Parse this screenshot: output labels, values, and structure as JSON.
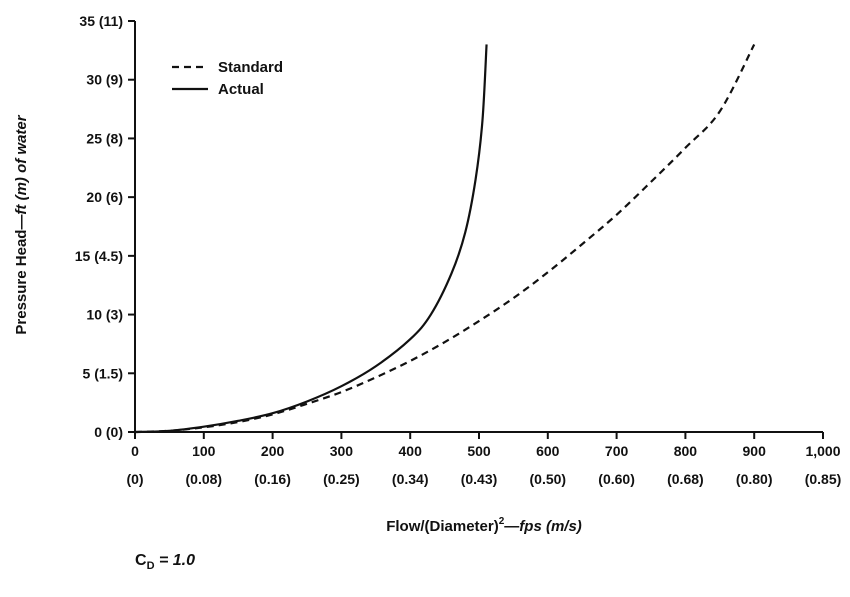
{
  "chart_data": {
    "type": "line",
    "xlabel_main": "Flow/(Diameter)",
    "xlabel_sup": "2",
    "xlabel_dash": "—",
    "xlabel_units": "fps (m/s)",
    "ylabel_main": "Pressure Head—",
    "ylabel_units": "ft (m) of water",
    "xlim": [
      0,
      1000
    ],
    "ylim": [
      0,
      35
    ],
    "x_ticks": [
      0,
      100,
      200,
      300,
      400,
      500,
      600,
      700,
      800,
      900,
      1000
    ],
    "x_tick_labels": [
      "0",
      "100",
      "200",
      "300",
      "400",
      "500",
      "600",
      "700",
      "800",
      "900",
      "1,000"
    ],
    "x_tick_labels_metric": [
      "(0)",
      "(0.08)",
      "(0.16)",
      "(0.25)",
      "(0.34)",
      "(0.43)",
      "(0.50)",
      "(0.60)",
      "(0.68)",
      "(0.80)",
      "(0.85)"
    ],
    "y_ticks": [
      0,
      5,
      10,
      15,
      20,
      25,
      30,
      35
    ],
    "y_tick_labels": [
      "0 (0)",
      "5 (1.5)",
      "10 (3)",
      "15 (4.5)",
      "20 (6)",
      "25 (8)",
      "30 (9)",
      "35 (11)"
    ],
    "grid": false,
    "legend_position": "top-left",
    "series": [
      {
        "name": "Standard",
        "style": "dashed",
        "color": "#111111",
        "x": [
          0,
          50,
          100,
          150,
          200,
          250,
          300,
          350,
          400,
          450,
          500,
          550,
          600,
          650,
          700,
          750,
          800,
          850,
          900
        ],
        "y": [
          0,
          0.1,
          0.4,
          0.85,
          1.5,
          2.4,
          3.4,
          4.65,
          6.05,
          7.65,
          9.45,
          11.4,
          13.6,
          16.0,
          18.5,
          21.3,
          24.2,
          27.3,
          33.0
        ]
      },
      {
        "name": "Actual",
        "style": "solid",
        "color": "#111111",
        "x": [
          0,
          50,
          100,
          150,
          200,
          250,
          300,
          350,
          400,
          430,
          460,
          480,
          495,
          505,
          511
        ],
        "y": [
          0,
          0.1,
          0.45,
          0.95,
          1.6,
          2.6,
          3.9,
          5.6,
          7.9,
          10.0,
          13.5,
          17.0,
          21.5,
          26.5,
          33.0
        ]
      }
    ]
  },
  "note": {
    "symbol": "C",
    "subscript": "D",
    "value": "= 1.0"
  }
}
